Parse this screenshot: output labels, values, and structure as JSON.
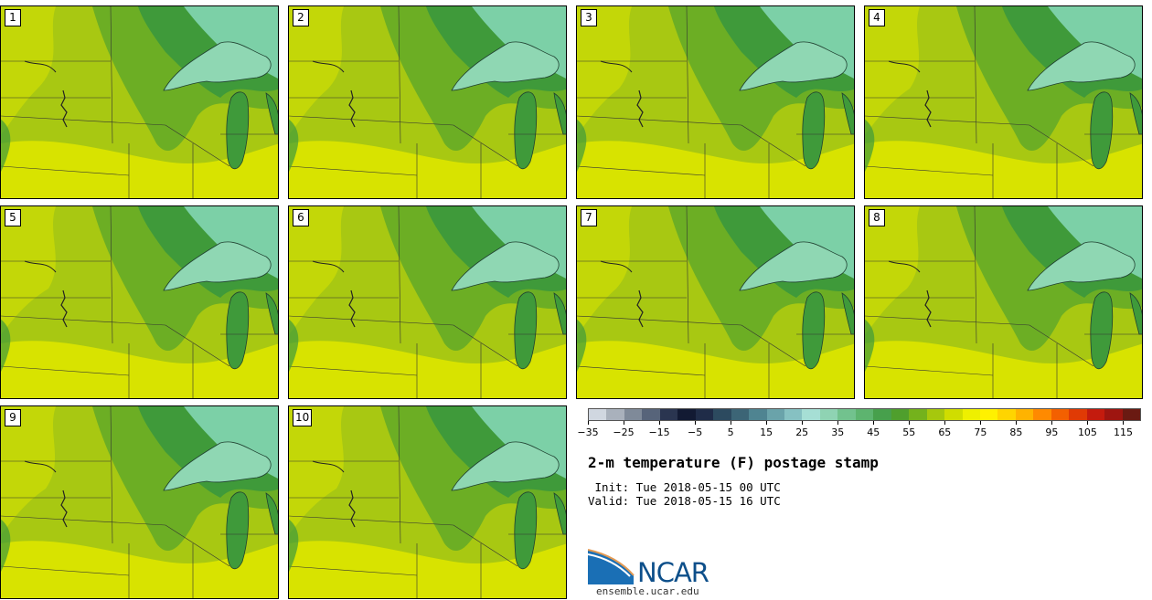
{
  "panels": [
    {
      "label": "1"
    },
    {
      "label": "2"
    },
    {
      "label": "3"
    },
    {
      "label": "4"
    },
    {
      "label": "5"
    },
    {
      "label": "6"
    },
    {
      "label": "7"
    },
    {
      "label": "8"
    },
    {
      "label": "9"
    },
    {
      "label": "10"
    }
  ],
  "colorbar": {
    "colors": [
      "#d0d7e0",
      "#a9b1bc",
      "#7f8a99",
      "#57647a",
      "#2a3550",
      "#121a33",
      "#1f2c48",
      "#2c4a5f",
      "#3c6576",
      "#4f8491",
      "#6aa3aa",
      "#86c1c2",
      "#a6dfd5",
      "#8fd3b3",
      "#72c28e",
      "#5db46f",
      "#47a04c",
      "#4f9f2d",
      "#74b21c",
      "#a6c80d",
      "#d0dd00",
      "#eef000",
      "#fff100",
      "#ffd500",
      "#ffb300",
      "#ff8a00",
      "#f36000",
      "#e03a05",
      "#c41b0e",
      "#9e1510",
      "#6a1a12"
    ],
    "tick_labels": [
      "−35",
      "−25",
      "−15",
      "−5",
      "5",
      "15",
      "25",
      "35",
      "45",
      "55",
      "65",
      "75",
      "85",
      "95",
      "105",
      "115"
    ]
  },
  "title": "2-m temperature (F) postage stamp",
  "init_text": " Init: Tue 2018-05-15 00 UTC",
  "valid_text": "Valid: Tue 2018-05-15 16 UTC",
  "logo_text": "NCAR",
  "site": "ensemble.ucar.edu",
  "colors": {
    "warm": "#d8e300",
    "mid": "#a8c812",
    "green": "#6cae24",
    "dark": "#3f9a3a",
    "lake": "#8fd7b3",
    "cool": "#7cd0a7"
  }
}
